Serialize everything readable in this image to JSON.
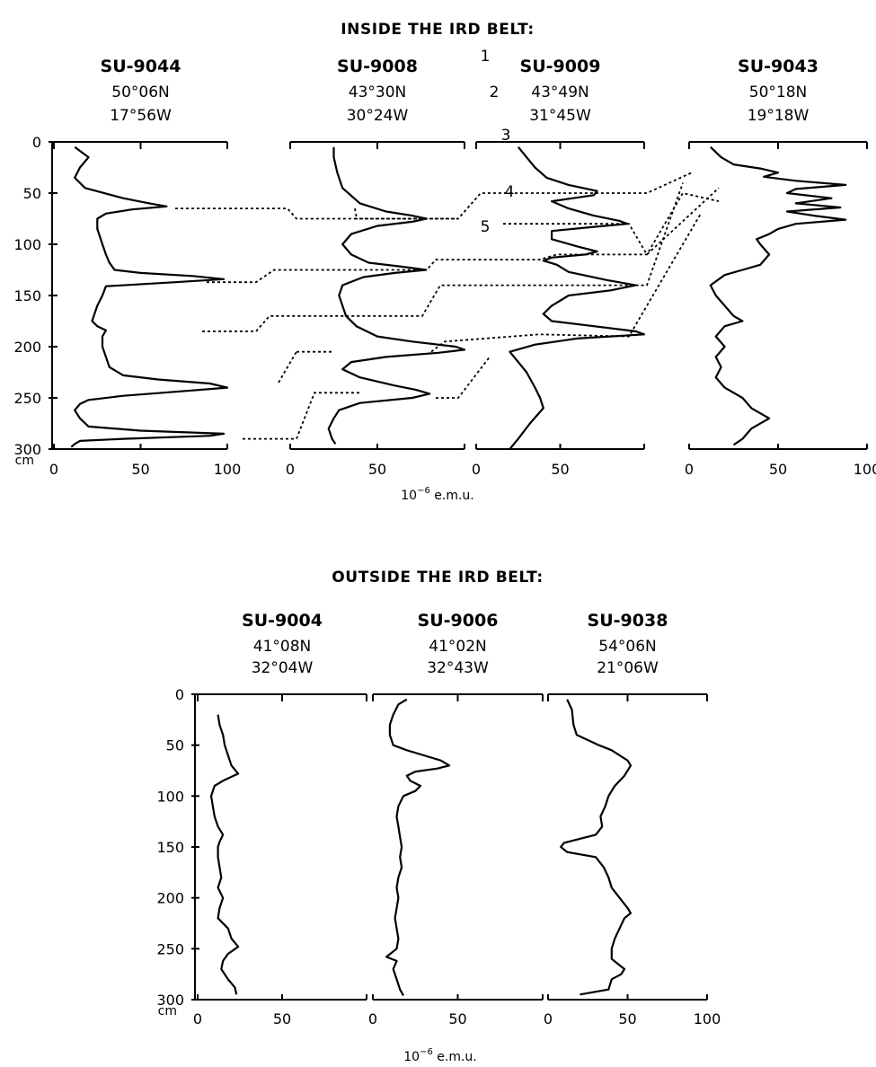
{
  "chart_data": [
    {
      "type": "line",
      "title": "INSIDE THE IRD BELT:",
      "depth_unit": "cm",
      "x_unit_base": "10",
      "x_unit_exp": "−6",
      "x_unit_suffix": " e.m.u.",
      "depth_ticks": [
        0,
        50,
        100,
        150,
        200,
        250,
        300
      ],
      "depth_range": [
        0,
        300
      ],
      "tie_labels": [
        "1",
        "2",
        "3",
        "4",
        "5"
      ],
      "cores": [
        {
          "name": "SU-9044",
          "lat": "50°06N",
          "lon": "17°56W",
          "xlim": [
            0,
            100
          ],
          "ticks": [
            "0",
            "50",
            "100"
          ],
          "depth": [
            5,
            15,
            25,
            35,
            45,
            55,
            60,
            63,
            66,
            70,
            75,
            85,
            100,
            110,
            118,
            125,
            128,
            131,
            134,
            137,
            141,
            150,
            160,
            170,
            175,
            180,
            184,
            190,
            200,
            210,
            220,
            228,
            232,
            236,
            240,
            244,
            248,
            252,
            256,
            262,
            270,
            278,
            282,
            285,
            287,
            290,
            292,
            295,
            298
          ],
          "values": [
            12,
            20,
            15,
            12,
            18,
            40,
            55,
            65,
            45,
            30,
            25,
            25,
            28,
            30,
            32,
            35,
            50,
            80,
            98,
            70,
            30,
            28,
            25,
            23,
            22,
            25,
            30,
            28,
            28,
            30,
            32,
            40,
            60,
            90,
            100,
            70,
            40,
            20,
            15,
            12,
            15,
            20,
            50,
            98,
            90,
            40,
            15,
            12,
            10
          ]
        },
        {
          "name": "SU-9008",
          "lat": "43°30N",
          "lon": "30°24W",
          "xlim": [
            0,
            100
          ],
          "ticks": [
            "0",
            "50",
            ""
          ],
          "depth": [
            5,
            15,
            30,
            45,
            60,
            68,
            72,
            75,
            78,
            82,
            90,
            100,
            110,
            118,
            122,
            125,
            128,
            132,
            140,
            150,
            160,
            170,
            180,
            190,
            195,
            200,
            203,
            206,
            210,
            215,
            222,
            230,
            238,
            242,
            246,
            250,
            255,
            262,
            270,
            280,
            290,
            295
          ],
          "values": [
            25,
            25,
            27,
            30,
            40,
            55,
            70,
            78,
            70,
            50,
            35,
            30,
            35,
            45,
            65,
            78,
            60,
            42,
            30,
            28,
            30,
            32,
            38,
            50,
            70,
            95,
            100,
            85,
            55,
            35,
            30,
            40,
            60,
            72,
            80,
            70,
            40,
            28,
            25,
            22,
            24,
            26
          ]
        },
        {
          "name": "SU-9009",
          "lat": "43°49N",
          "lon": "31°45W",
          "xlim": [
            0,
            100
          ],
          "ticks": [
            "0",
            "50",
            ""
          ],
          "depth": [
            5,
            15,
            25,
            35,
            42,
            48,
            52,
            58,
            65,
            72,
            77,
            80,
            83,
            87,
            95,
            102,
            107,
            110,
            113,
            116,
            120,
            127,
            135,
            140,
            145,
            150,
            160,
            168,
            175,
            180,
            185,
            188,
            192,
            198,
            205,
            215,
            225,
            240,
            250,
            260,
            275,
            290,
            300
          ],
          "values": [
            25,
            30,
            35,
            42,
            55,
            72,
            70,
            45,
            55,
            70,
            85,
            90,
            70,
            45,
            45,
            60,
            72,
            65,
            45,
            40,
            48,
            55,
            78,
            95,
            80,
            55,
            45,
            40,
            45,
            70,
            95,
            100,
            60,
            35,
            20,
            25,
            30,
            35,
            38,
            40,
            32,
            25,
            20
          ]
        },
        {
          "name": "SU-9043",
          "lat": "50°18N",
          "lon": "19°18W",
          "xlim": [
            0,
            100
          ],
          "ticks": [
            "0",
            "50",
            "100"
          ],
          "depth": [
            5,
            15,
            22,
            26,
            30,
            34,
            38,
            42,
            46,
            50,
            55,
            60,
            64,
            68,
            72,
            76,
            80,
            85,
            90,
            95,
            100,
            110,
            120,
            125,
            130,
            140,
            150,
            160,
            170,
            175,
            180,
            190,
            200,
            210,
            220,
            230,
            240,
            250,
            260,
            270,
            280,
            290,
            296
          ],
          "values": [
            12,
            18,
            25,
            40,
            50,
            42,
            60,
            88,
            60,
            55,
            80,
            60,
            85,
            55,
            70,
            88,
            60,
            50,
            45,
            38,
            40,
            45,
            40,
            30,
            20,
            12,
            15,
            20,
            25,
            30,
            20,
            15,
            20,
            15,
            18,
            15,
            20,
            30,
            35,
            45,
            35,
            30,
            25
          ]
        }
      ]
    },
    {
      "type": "line",
      "title": "OUTSIDE THE IRD BELT:",
      "depth_unit": "cm",
      "x_unit_base": "10",
      "x_unit_exp": "−6",
      "x_unit_suffix": " e.m.u.",
      "depth_ticks": [
        0,
        50,
        100,
        150,
        200,
        250,
        300
      ],
      "depth_range": [
        0,
        300
      ],
      "cores": [
        {
          "name": "SU-9004",
          "lat": "41°08N",
          "lon": "32°04W",
          "xlim": [
            0,
            100
          ],
          "ticks": [
            "0",
            "50",
            ""
          ],
          "depth": [
            20,
            30,
            40,
            50,
            60,
            70,
            78,
            85,
            90,
            100,
            110,
            120,
            130,
            138,
            145,
            150,
            160,
            170,
            180,
            190,
            200,
            210,
            220,
            230,
            240,
            248,
            255,
            262,
            270,
            280,
            288,
            295
          ],
          "values": [
            12,
            13,
            15,
            16,
            18,
            20,
            24,
            15,
            10,
            8,
            9,
            10,
            12,
            15,
            13,
            12,
            12,
            13,
            14,
            12,
            15,
            13,
            12,
            18,
            20,
            24,
            18,
            15,
            14,
            18,
            22,
            23
          ]
        },
        {
          "name": "SU-9006",
          "lat": "41°02N",
          "lon": "32°43W",
          "xlim": [
            0,
            100
          ],
          "ticks": [
            "0",
            "50",
            ""
          ],
          "depth": [
            5,
            10,
            20,
            30,
            40,
            50,
            55,
            60,
            65,
            70,
            73,
            76,
            80,
            85,
            90,
            95,
            100,
            110,
            120,
            130,
            140,
            150,
            160,
            170,
            180,
            190,
            200,
            210,
            220,
            230,
            240,
            250,
            258,
            262,
            270,
            280,
            290,
            296
          ],
          "values": [
            20,
            15,
            12,
            10,
            10,
            12,
            20,
            30,
            40,
            45,
            38,
            25,
            20,
            22,
            28,
            25,
            18,
            15,
            14,
            15,
            16,
            17,
            16,
            17,
            15,
            14,
            15,
            14,
            13,
            14,
            15,
            14,
            8,
            14,
            12,
            14,
            16,
            18
          ]
        },
        {
          "name": "SU-9038",
          "lat": "54°06N",
          "lon": "21°06W",
          "xlim": [
            0,
            100
          ],
          "ticks": [
            "0",
            "50",
            "100"
          ],
          "depth": [
            5,
            15,
            30,
            40,
            45,
            50,
            55,
            60,
            65,
            70,
            80,
            90,
            100,
            110,
            120,
            130,
            138,
            142,
            146,
            150,
            155,
            160,
            170,
            180,
            190,
            200,
            210,
            215,
            220,
            230,
            240,
            250,
            260,
            270,
            275,
            280,
            290,
            295
          ],
          "values": [
            12,
            15,
            16,
            18,
            25,
            32,
            40,
            45,
            50,
            52,
            48,
            42,
            38,
            36,
            33,
            34,
            30,
            20,
            10,
            8,
            12,
            30,
            35,
            38,
            40,
            45,
            50,
            52,
            48,
            45,
            42,
            40,
            40,
            48,
            46,
            40,
            38,
            20
          ]
        }
      ]
    }
  ]
}
